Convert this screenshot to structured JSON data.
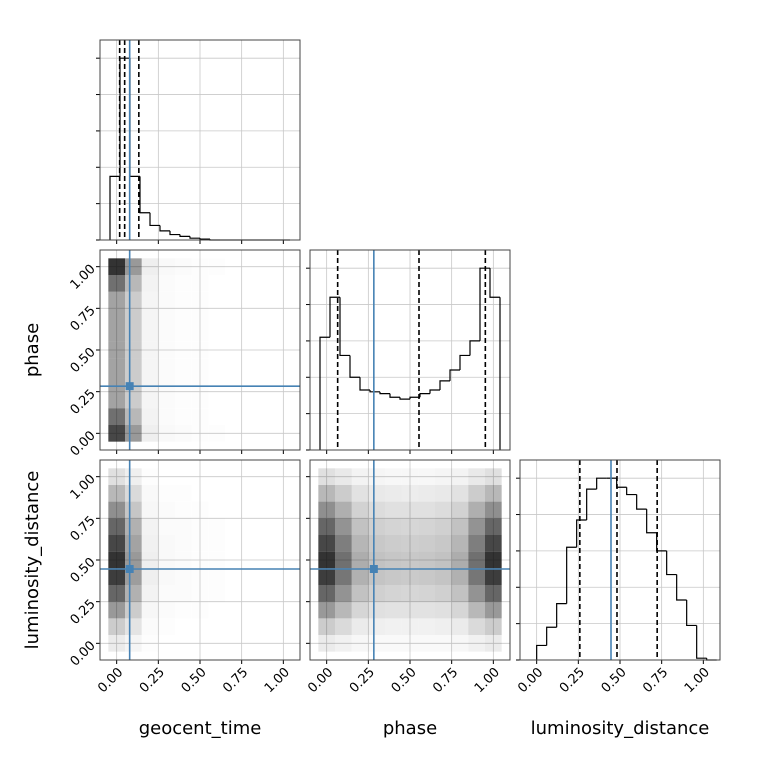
{
  "chart_data": {
    "type": "corner",
    "parameters": [
      "geocent_time",
      "phase",
      "luminosity_distance"
    ],
    "lim": [
      -0.1,
      1.1
    ],
    "ticks": [
      {
        "value": 0,
        "label": "0.00"
      },
      {
        "value": 0.25,
        "label": "0.25"
      },
      {
        "value": 0.5,
        "label": "0.50"
      },
      {
        "value": 0.75,
        "label": "0.75"
      },
      {
        "value": 1,
        "label": "1.00"
      }
    ],
    "grid": true,
    "truth_color": "#4682b4",
    "truths": [
      0.078,
      0.283,
      0.446
    ],
    "quantiles": [
      [
        0.018,
        0.048,
        0.133
      ],
      [
        0.066,
        0.554,
        0.952
      ],
      [
        0.259,
        0.482,
        0.723
      ]
    ],
    "hist_ylim": [
      0,
      1.1
    ],
    "hist_yticks": [
      0,
      0.2,
      0.4,
      0.6,
      0.8,
      1
    ],
    "histograms": [
      {
        "bins": [
          -0.04,
          0.02,
          0.08,
          0.14,
          0.2,
          0.26,
          0.32,
          0.38,
          0.44,
          0.5,
          0.56,
          0.62,
          0.68,
          0.74,
          0.8,
          0.86,
          0.92,
          0.98,
          1.04
        ],
        "values": [
          0.35,
          1.0,
          0.35,
          0.15,
          0.08,
          0.05,
          0.03,
          0.02,
          0.01,
          0.005,
          0,
          0,
          0,
          0,
          0,
          0,
          0,
          0
        ]
      },
      {
        "bins": [
          -0.04,
          0.02,
          0.08,
          0.14,
          0.2,
          0.26,
          0.32,
          0.38,
          0.44,
          0.5,
          0.56,
          0.62,
          0.68,
          0.74,
          0.8,
          0.86,
          0.92,
          0.98,
          1.04
        ],
        "values": [
          0.62,
          0.84,
          0.52,
          0.4,
          0.33,
          0.32,
          0.31,
          0.29,
          0.28,
          0.29,
          0.31,
          0.33,
          0.38,
          0.44,
          0.52,
          0.6,
          1.0,
          0.84
        ]
      },
      {
        "bins": [
          0,
          0.06,
          0.12,
          0.18,
          0.24,
          0.3,
          0.36,
          0.42,
          0.48,
          0.54,
          0.6,
          0.66,
          0.72,
          0.78,
          0.84,
          0.9,
          0.96,
          1.02,
          1.08
        ],
        "values": [
          0.08,
          0.18,
          0.31,
          0.62,
          0.77,
          0.94,
          1.0,
          1.0,
          0.95,
          0.91,
          0.83,
          0.7,
          0.6,
          0.47,
          0.33,
          0.19,
          0.01,
          0
        ]
      }
    ],
    "density_edges": [
      -0.05,
      0.05,
      0.15,
      0.25,
      0.35,
      0.45,
      0.55,
      0.65,
      0.75,
      0.85,
      0.95,
      1.05
    ],
    "density": [
      {
        "x": 0,
        "y": 1,
        "values": [
          [
            0.9,
            0.5,
            0.08,
            0.03,
            0.02,
            0.01,
            0.01,
            0,
            0,
            0,
            0
          ],
          [
            0.7,
            0.35,
            0.06,
            0.02,
            0.01,
            0.01,
            0,
            0,
            0,
            0,
            0
          ],
          [
            0.45,
            0.25,
            0.05,
            0.02,
            0.01,
            0.01,
            0,
            0,
            0,
            0,
            0
          ],
          [
            0.45,
            0.25,
            0.05,
            0.02,
            0.01,
            0.01,
            0,
            0,
            0,
            0,
            0
          ],
          [
            0.45,
            0.25,
            0.05,
            0.02,
            0.01,
            0.01,
            0,
            0,
            0,
            0,
            0
          ],
          [
            0.45,
            0.25,
            0.05,
            0.02,
            0.01,
            0.01,
            0,
            0,
            0,
            0,
            0
          ],
          [
            0.45,
            0.25,
            0.05,
            0.02,
            0.01,
            0.01,
            0,
            0,
            0,
            0,
            0
          ],
          [
            0.45,
            0.25,
            0.05,
            0.02,
            0.01,
            0.01,
            0,
            0,
            0,
            0,
            0
          ],
          [
            0.45,
            0.25,
            0.05,
            0.02,
            0.01,
            0.01,
            0,
            0,
            0,
            0,
            0
          ],
          [
            0.7,
            0.35,
            0.06,
            0.02,
            0.01,
            0.01,
            0,
            0,
            0,
            0,
            0
          ],
          [
            1.0,
            0.5,
            0.08,
            0.03,
            0.02,
            0.01,
            0.01,
            0,
            0,
            0,
            0
          ]
        ]
      },
      {
        "x": 0,
        "y": 2,
        "values": [
          [
            0.1,
            0.05,
            0.01,
            0,
            0,
            0,
            0,
            0,
            0,
            0,
            0
          ],
          [
            0.25,
            0.13,
            0.02,
            0.01,
            0,
            0,
            0,
            0,
            0,
            0,
            0
          ],
          [
            0.5,
            0.25,
            0.04,
            0.02,
            0.01,
            0.01,
            0,
            0,
            0,
            0,
            0
          ],
          [
            0.75,
            0.38,
            0.06,
            0.02,
            0.02,
            0.01,
            0.01,
            0,
            0,
            0,
            0
          ],
          [
            0.95,
            0.48,
            0.08,
            0.03,
            0.02,
            0.01,
            0.01,
            0,
            0,
            0,
            0
          ],
          [
            1.0,
            0.5,
            0.08,
            0.03,
            0.02,
            0.01,
            0.01,
            0,
            0,
            0,
            0
          ],
          [
            0.9,
            0.45,
            0.07,
            0.03,
            0.02,
            0.01,
            0.01,
            0,
            0,
            0,
            0
          ],
          [
            0.75,
            0.38,
            0.06,
            0.02,
            0.02,
            0.01,
            0.01,
            0,
            0,
            0,
            0
          ],
          [
            0.55,
            0.28,
            0.04,
            0.02,
            0.01,
            0.01,
            0,
            0,
            0,
            0,
            0
          ],
          [
            0.35,
            0.18,
            0.03,
            0.01,
            0.01,
            0,
            0,
            0,
            0,
            0,
            0
          ],
          [
            0.15,
            0.08,
            0.01,
            0,
            0,
            0,
            0,
            0,
            0,
            0,
            0
          ]
        ]
      },
      {
        "x": 1,
        "y": 2,
        "values": [
          [
            0.1,
            0.07,
            0.04,
            0.03,
            0.03,
            0.03,
            0.03,
            0.03,
            0.04,
            0.07,
            0.1
          ],
          [
            0.25,
            0.18,
            0.1,
            0.08,
            0.07,
            0.07,
            0.07,
            0.08,
            0.1,
            0.18,
            0.25
          ],
          [
            0.5,
            0.35,
            0.2,
            0.15,
            0.14,
            0.14,
            0.14,
            0.15,
            0.2,
            0.35,
            0.5
          ],
          [
            0.75,
            0.53,
            0.3,
            0.23,
            0.21,
            0.2,
            0.21,
            0.23,
            0.3,
            0.53,
            0.75
          ],
          [
            0.95,
            0.67,
            0.38,
            0.29,
            0.27,
            0.26,
            0.27,
            0.29,
            0.38,
            0.67,
            0.95
          ],
          [
            1.0,
            0.7,
            0.4,
            0.3,
            0.28,
            0.27,
            0.28,
            0.3,
            0.4,
            0.7,
            1.0
          ],
          [
            0.9,
            0.63,
            0.36,
            0.27,
            0.25,
            0.24,
            0.25,
            0.27,
            0.36,
            0.63,
            0.9
          ],
          [
            0.75,
            0.53,
            0.3,
            0.23,
            0.21,
            0.2,
            0.21,
            0.23,
            0.3,
            0.53,
            0.75
          ],
          [
            0.55,
            0.39,
            0.22,
            0.17,
            0.15,
            0.15,
            0.15,
            0.17,
            0.22,
            0.39,
            0.55
          ],
          [
            0.35,
            0.25,
            0.14,
            0.11,
            0.1,
            0.09,
            0.1,
            0.11,
            0.14,
            0.25,
            0.35
          ],
          [
            0.15,
            0.11,
            0.06,
            0.05,
            0.04,
            0.04,
            0.04,
            0.05,
            0.06,
            0.11,
            0.15
          ]
        ]
      }
    ]
  }
}
